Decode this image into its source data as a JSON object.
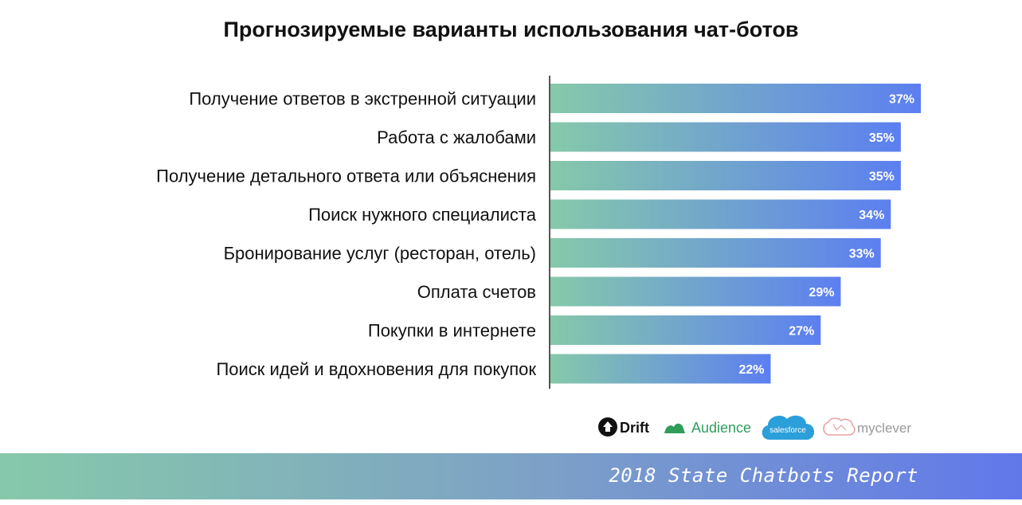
{
  "chart_data": {
    "type": "bar",
    "orientation": "horizontal",
    "title": "Прогнозируемые варианты использования чат-ботов",
    "categories": [
      "Получение ответов в экстренной ситуации",
      "Работа с жалобами",
      "Получение детального ответа или объяснения",
      "Поиск нужного специалиста",
      "Бронирование услуг (ресторан, отель)",
      "Оплата счетов",
      "Покупки в интернете",
      "Поиск идей и вдохновения для покупок"
    ],
    "values": [
      37,
      35,
      35,
      34,
      33,
      29,
      27,
      22
    ],
    "value_labels": [
      "37%",
      "35%",
      "35%",
      "34%",
      "33%",
      "29%",
      "27%",
      "22%"
    ],
    "xlim": [
      0,
      37
    ],
    "grid": false,
    "legend": "none",
    "bar_gradient": [
      "#86c9aa",
      "#5c7ff0"
    ]
  },
  "logos": {
    "drift": "Drift",
    "audience": "Audience",
    "salesforce": "salesforce",
    "myclever": "myclever"
  },
  "footer": {
    "text": "2018 State Chatbots Report"
  },
  "colors": {
    "footer_start": "#86c9aa",
    "footer_end": "#6178ea",
    "axis": "#555555"
  }
}
